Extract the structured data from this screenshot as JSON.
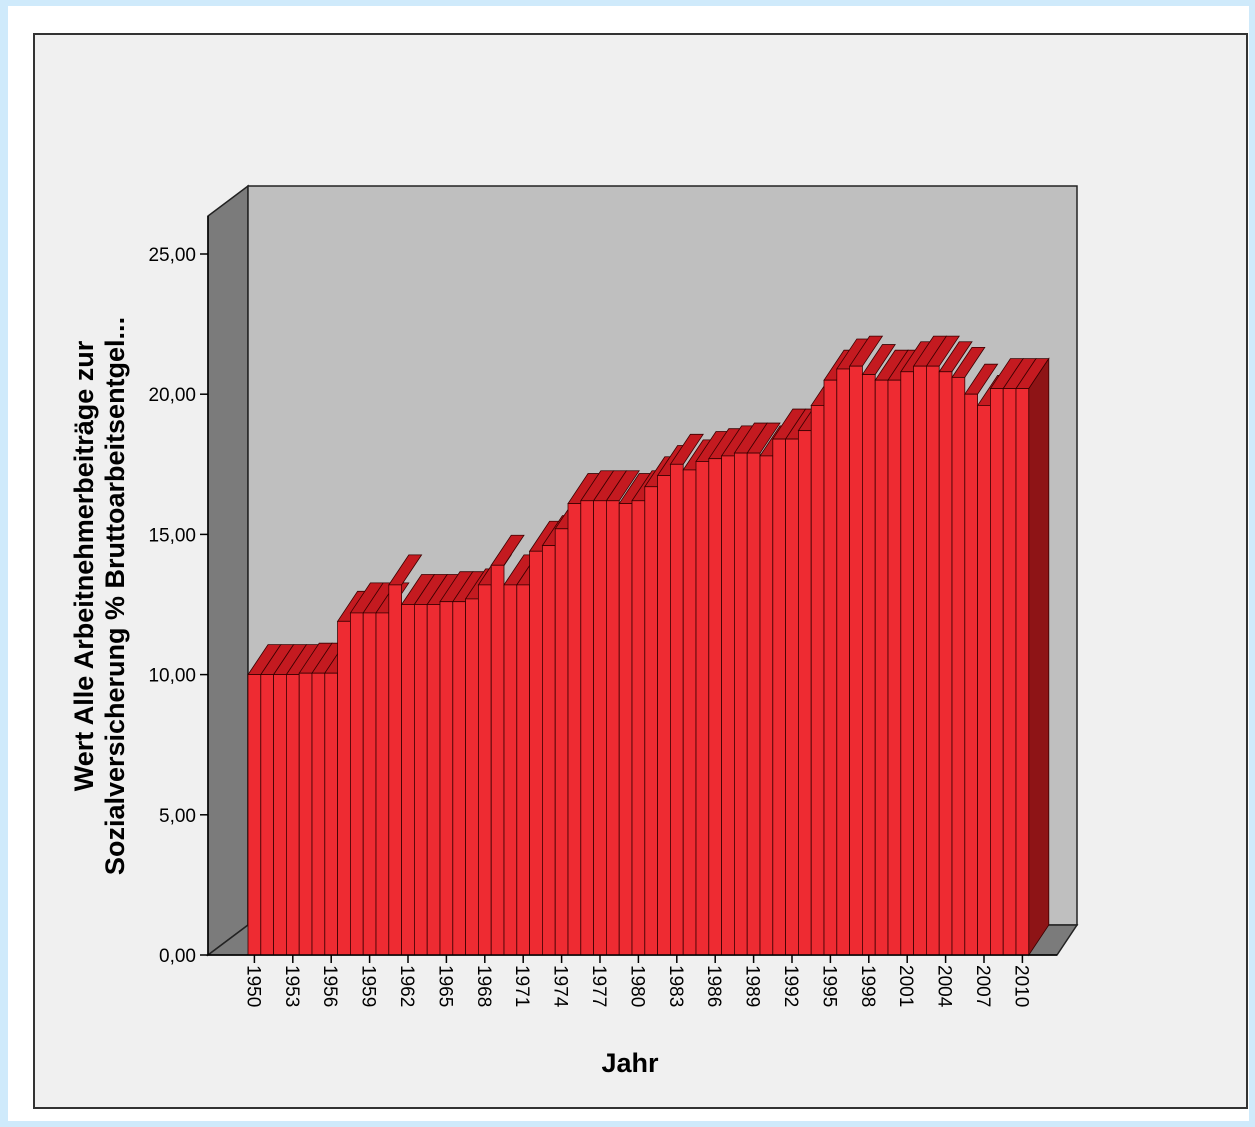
{
  "chart_data": {
    "type": "bar",
    "style": "3d",
    "xlabel": "Jahr",
    "ylabel_lines": [
      "Wert Alle Arbeitnehmerbeiträge zur",
      "Sozialversicherung % Bruttoarbeitsentgel..."
    ],
    "ylim": [
      0,
      25
    ],
    "y_ticks": [
      0,
      5,
      10,
      15,
      20,
      25
    ],
    "y_tick_labels": [
      "0,00",
      "5,00",
      "10,00",
      "15,00",
      "20,00",
      "25,00"
    ],
    "x_tick_labels": [
      "1950",
      "1953",
      "1956",
      "1959",
      "1962",
      "1965",
      "1968",
      "1971",
      "1974",
      "1977",
      "1980",
      "1983",
      "1986",
      "1989",
      "1992",
      "1995",
      "1998",
      "2001",
      "2004",
      "2007",
      "2010"
    ],
    "grid": false,
    "legend": "none",
    "categories": [
      "1950",
      "1951",
      "1952",
      "1953",
      "1954",
      "1955",
      "1956",
      "1957",
      "1958",
      "1959",
      "1960",
      "1961",
      "1962",
      "1963",
      "1964",
      "1965",
      "1966",
      "1967",
      "1968",
      "1969",
      "1970",
      "1971",
      "1972",
      "1973",
      "1974",
      "1975",
      "1976",
      "1977",
      "1978",
      "1979",
      "1980",
      "1981",
      "1982",
      "1983",
      "1984",
      "1985",
      "1986",
      "1987",
      "1988",
      "1989",
      "1990",
      "1991",
      "1992",
      "1993",
      "1994",
      "1995",
      "1996",
      "1997",
      "1998",
      "1999",
      "2000",
      "2001",
      "2002",
      "2003",
      "2004",
      "2005",
      "2006",
      "2007",
      "2008",
      "2009",
      "2010"
    ],
    "values": [
      10.0,
      10.0,
      10.0,
      10.0,
      10.05,
      10.05,
      10.05,
      11.9,
      12.2,
      12.2,
      12.2,
      13.2,
      12.5,
      12.5,
      12.5,
      12.6,
      12.6,
      12.7,
      13.2,
      13.9,
      13.2,
      13.2,
      14.4,
      14.6,
      15.2,
      16.1,
      16.2,
      16.2,
      16.2,
      16.1,
      16.2,
      16.7,
      17.1,
      17.5,
      17.3,
      17.6,
      17.7,
      17.8,
      17.9,
      17.9,
      17.8,
      18.4,
      18.4,
      18.7,
      19.6,
      20.5,
      20.9,
      21.0,
      20.7,
      20.5,
      20.5,
      20.8,
      21.0,
      21.0,
      20.8,
      20.6,
      20.0,
      19.6,
      20.2,
      20.2,
      20.2
    ],
    "colors": {
      "bar": "#ee2b32",
      "bar_top": "#c41a20",
      "bar_side": "#8e1416",
      "plot_back": "#bfbfbf",
      "plot_floor": "#7b7b7b",
      "frame_bg": "#f0f0f0"
    }
  }
}
